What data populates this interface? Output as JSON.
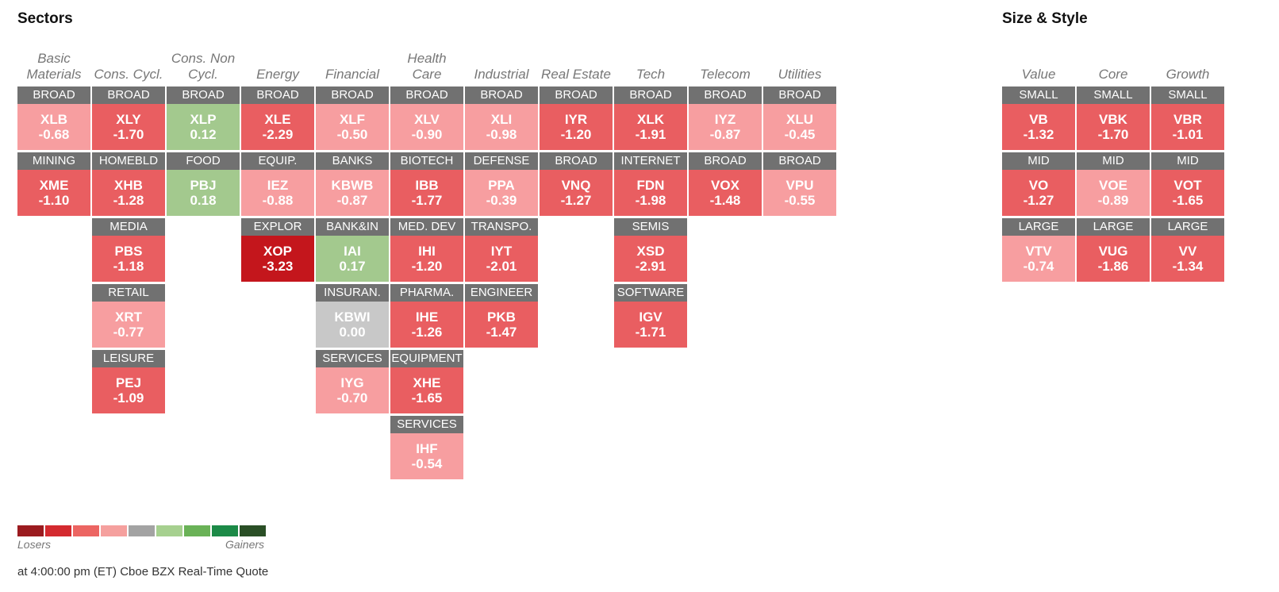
{
  "sectors_title": "Sectors",
  "size_style_title": "Size & Style",
  "colors": {
    "strong_loss": "#c4161c",
    "loss": "#e95e61",
    "mild_loss": "#f79ea0",
    "neutral": "#c8c8c8",
    "mild_gain": "#a3c98e",
    "label_bg": "#717171"
  },
  "sectors": [
    {
      "name_lines": [
        "Basic",
        "Materials"
      ],
      "tiles": [
        {
          "label": "BROAD",
          "symbol": "XLB",
          "change": "-0.68",
          "tone": "mild_loss"
        },
        {
          "label": "MINING",
          "symbol": "XME",
          "change": "-1.10",
          "tone": "loss"
        }
      ]
    },
    {
      "name_lines": [
        "Cons. Cycl."
      ],
      "tiles": [
        {
          "label": "BROAD",
          "symbol": "XLY",
          "change": "-1.70",
          "tone": "loss"
        },
        {
          "label": "HOMEBLD",
          "symbol": "XHB",
          "change": "-1.28",
          "tone": "loss"
        },
        {
          "label": "MEDIA",
          "symbol": "PBS",
          "change": "-1.18",
          "tone": "loss"
        },
        {
          "label": "RETAIL",
          "symbol": "XRT",
          "change": "-0.77",
          "tone": "mild_loss"
        },
        {
          "label": "LEISURE",
          "symbol": "PEJ",
          "change": "-1.09",
          "tone": "loss"
        }
      ]
    },
    {
      "name_lines": [
        "Cons. Non",
        "Cycl."
      ],
      "tiles": [
        {
          "label": "BROAD",
          "symbol": "XLP",
          "change": "0.12",
          "tone": "mild_gain"
        },
        {
          "label": "FOOD",
          "symbol": "PBJ",
          "change": "0.18",
          "tone": "mild_gain"
        }
      ]
    },
    {
      "name_lines": [
        "Energy"
      ],
      "tiles": [
        {
          "label": "BROAD",
          "symbol": "XLE",
          "change": "-2.29",
          "tone": "loss"
        },
        {
          "label": "EQUIP.",
          "symbol": "IEZ",
          "change": "-0.88",
          "tone": "mild_loss"
        },
        {
          "label": "EXPLOR",
          "symbol": "XOP",
          "change": "-3.23",
          "tone": "strong_loss"
        }
      ]
    },
    {
      "name_lines": [
        "Financial"
      ],
      "tiles": [
        {
          "label": "BROAD",
          "symbol": "XLF",
          "change": "-0.50",
          "tone": "mild_loss"
        },
        {
          "label": "BANKS",
          "symbol": "KBWB",
          "change": "-0.87",
          "tone": "mild_loss"
        },
        {
          "label": "BANK&IN",
          "symbol": "IAI",
          "change": "0.17",
          "tone": "mild_gain"
        },
        {
          "label": "INSURAN.",
          "symbol": "KBWI",
          "change": "0.00",
          "tone": "neutral"
        },
        {
          "label": "SERVICES",
          "symbol": "IYG",
          "change": "-0.70",
          "tone": "mild_loss"
        }
      ]
    },
    {
      "name_lines": [
        "Health",
        "Care"
      ],
      "tiles": [
        {
          "label": "BROAD",
          "symbol": "XLV",
          "change": "-0.90",
          "tone": "mild_loss"
        },
        {
          "label": "BIOTECH",
          "symbol": "IBB",
          "change": "-1.77",
          "tone": "loss"
        },
        {
          "label": "MED. DEV",
          "symbol": "IHI",
          "change": "-1.20",
          "tone": "loss"
        },
        {
          "label": "PHARMA.",
          "symbol": "IHE",
          "change": "-1.26",
          "tone": "loss"
        },
        {
          "label": "EQUIPMENT",
          "symbol": "XHE",
          "change": "-1.65",
          "tone": "loss"
        },
        {
          "label": "SERVICES",
          "symbol": "IHF",
          "change": "-0.54",
          "tone": "mild_loss"
        }
      ]
    },
    {
      "name_lines": [
        "Industrial"
      ],
      "tiles": [
        {
          "label": "BROAD",
          "symbol": "XLI",
          "change": "-0.98",
          "tone": "mild_loss"
        },
        {
          "label": "DEFENSE",
          "symbol": "PPA",
          "change": "-0.39",
          "tone": "mild_loss"
        },
        {
          "label": "TRANSPO.",
          "symbol": "IYT",
          "change": "-2.01",
          "tone": "loss"
        },
        {
          "label": "ENGINEER",
          "symbol": "PKB",
          "change": "-1.47",
          "tone": "loss"
        }
      ]
    },
    {
      "name_lines": [
        "Real Estate"
      ],
      "tiles": [
        {
          "label": "BROAD",
          "symbol": "IYR",
          "change": "-1.20",
          "tone": "loss"
        },
        {
          "label": "BROAD",
          "symbol": "VNQ",
          "change": "-1.27",
          "tone": "loss"
        }
      ]
    },
    {
      "name_lines": [
        "Tech"
      ],
      "tiles": [
        {
          "label": "BROAD",
          "symbol": "XLK",
          "change": "-1.91",
          "tone": "loss"
        },
        {
          "label": "INTERNET",
          "symbol": "FDN",
          "change": "-1.98",
          "tone": "loss"
        },
        {
          "label": "SEMIS",
          "symbol": "XSD",
          "change": "-2.91",
          "tone": "loss"
        },
        {
          "label": "SOFTWARE",
          "symbol": "IGV",
          "change": "-1.71",
          "tone": "loss"
        }
      ]
    },
    {
      "name_lines": [
        "Telecom"
      ],
      "tiles": [
        {
          "label": "BROAD",
          "symbol": "IYZ",
          "change": "-0.87",
          "tone": "mild_loss"
        },
        {
          "label": "BROAD",
          "symbol": "VOX",
          "change": "-1.48",
          "tone": "loss"
        }
      ]
    },
    {
      "name_lines": [
        "Utilities"
      ],
      "tiles": [
        {
          "label": "BROAD",
          "symbol": "XLU",
          "change": "-0.45",
          "tone": "mild_loss"
        },
        {
          "label": "BROAD",
          "symbol": "VPU",
          "change": "-0.55",
          "tone": "mild_loss"
        }
      ]
    }
  ],
  "size_style": [
    {
      "name_lines": [
        "Value"
      ],
      "tiles": [
        {
          "label": "SMALL",
          "symbol": "VB",
          "change": "-1.32",
          "tone": "loss"
        },
        {
          "label": "MID",
          "symbol": "VO",
          "change": "-1.27",
          "tone": "loss"
        },
        {
          "label": "LARGE",
          "symbol": "VTV",
          "change": "-0.74",
          "tone": "mild_loss"
        }
      ]
    },
    {
      "name_lines": [
        "Core"
      ],
      "tiles": [
        {
          "label": "SMALL",
          "symbol": "VBK",
          "change": "-1.70",
          "tone": "loss"
        },
        {
          "label": "MID",
          "symbol": "VOE",
          "change": "-0.89",
          "tone": "mild_loss"
        },
        {
          "label": "LARGE",
          "symbol": "VUG",
          "change": "-1.86",
          "tone": "loss"
        }
      ]
    },
    {
      "name_lines": [
        "Growth"
      ],
      "tiles": [
        {
          "label": "SMALL",
          "symbol": "VBR",
          "change": "-1.01",
          "tone": "loss"
        },
        {
          "label": "MID",
          "symbol": "VOT",
          "change": "-1.65",
          "tone": "loss"
        },
        {
          "label": "LARGE",
          "symbol": "VV",
          "change": "-1.34",
          "tone": "loss"
        }
      ]
    }
  ],
  "legend": {
    "swatches": [
      "#9b1b1f",
      "#d42a2f",
      "#ec6562",
      "#f5a09e",
      "#a3a3a3",
      "#a6d08f",
      "#6ab257",
      "#1c8a47",
      "#2a4f26"
    ],
    "losers_label": "Losers",
    "gainers_label": "Gainers"
  },
  "footer": "at 4:00:00 pm (ET) Cboe BZX Real-Time Quote"
}
